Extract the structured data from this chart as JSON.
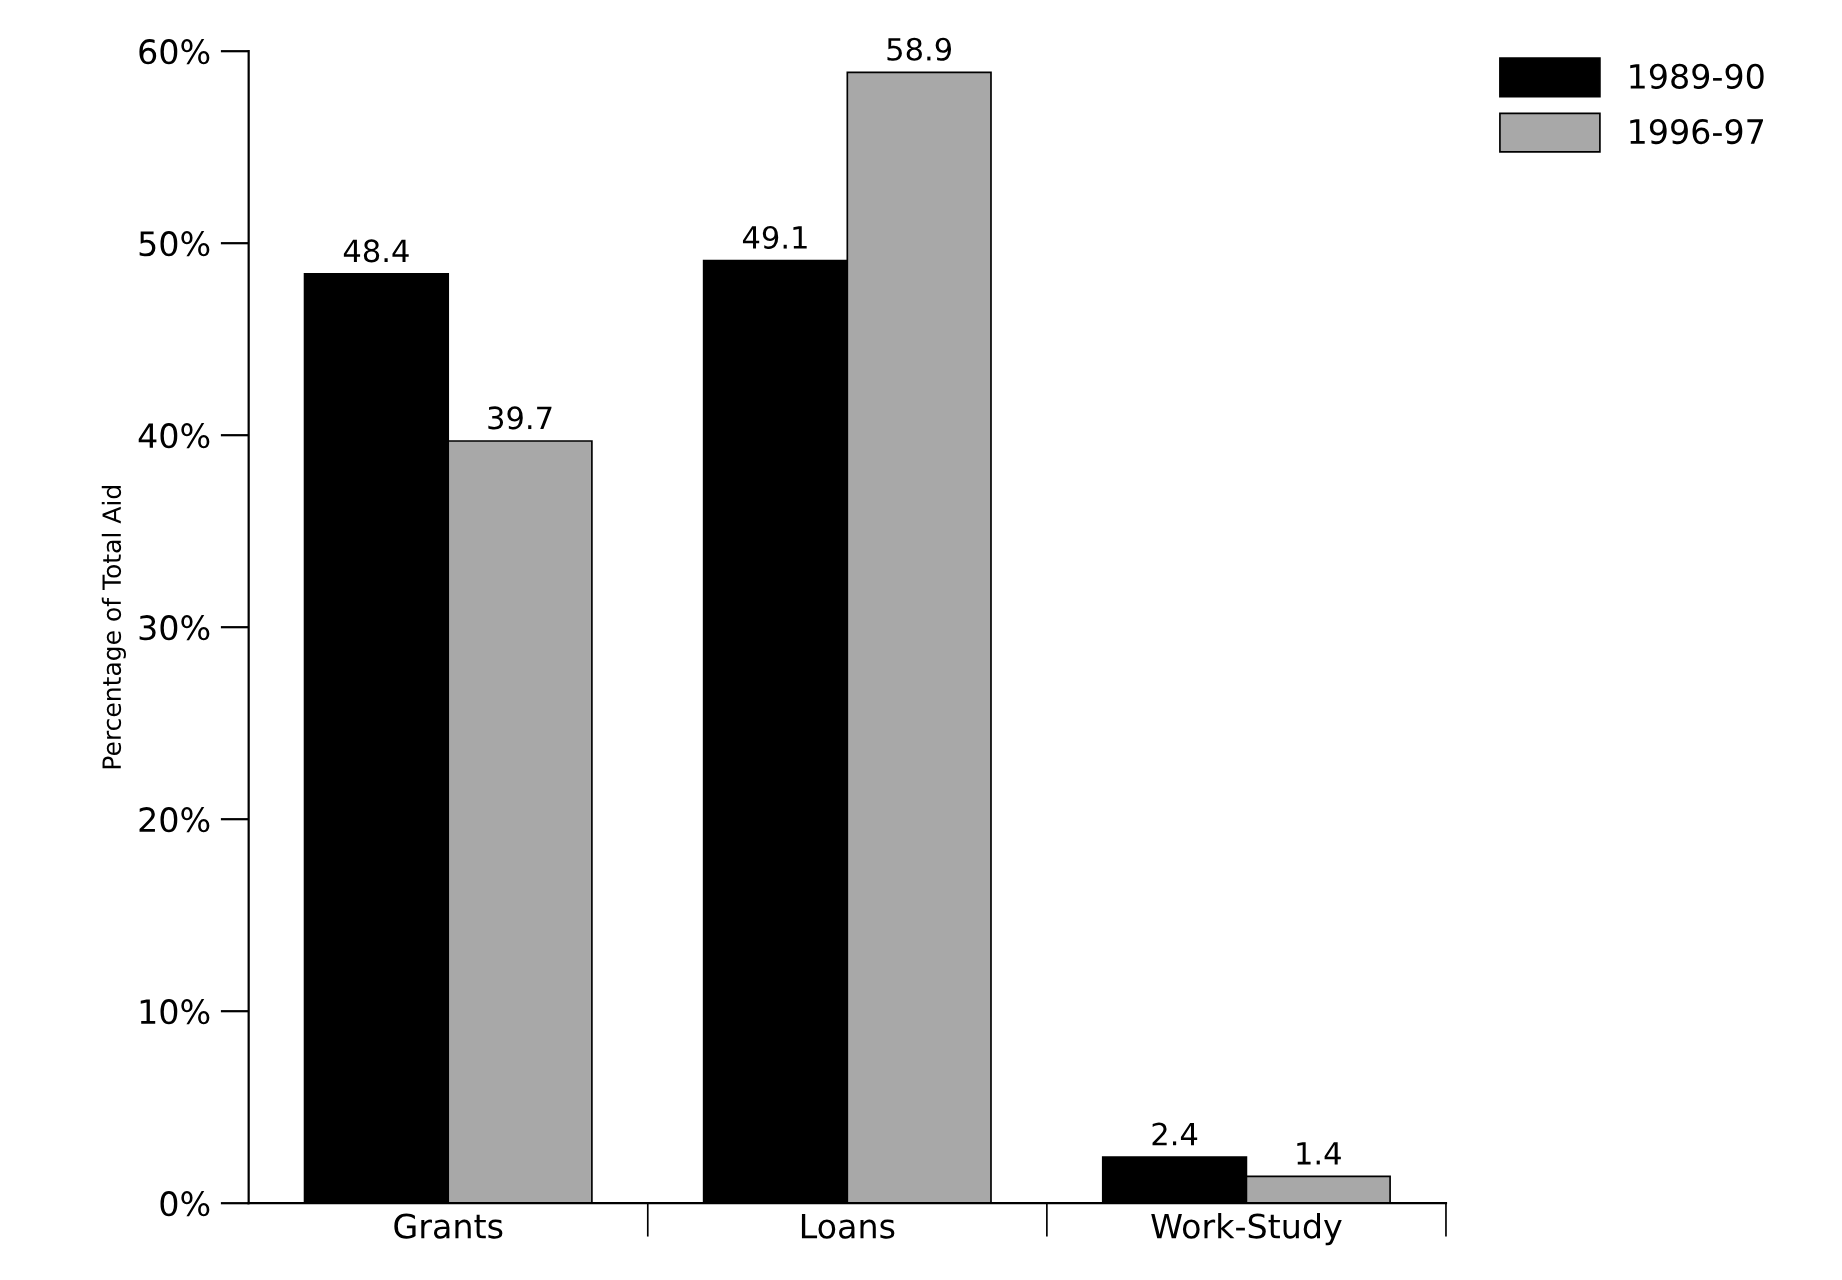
{
  "chart_data": {
    "type": "bar",
    "ylabel": "Percentage of Total Aid",
    "categories": [
      "Grants",
      "Loans",
      "Work-Study"
    ],
    "series": [
      {
        "name": "1989-90",
        "color": "#000000",
        "values": [
          48.4,
          49.1,
          2.4
        ]
      },
      {
        "name": "1996-97",
        "color": "#a8a8a8",
        "values": [
          39.7,
          58.9,
          1.4
        ]
      }
    ],
    "ylim": [
      0,
      60
    ],
    "yticks": [
      {
        "value": 0,
        "label": "0%"
      },
      {
        "value": 10,
        "label": "10%"
      },
      {
        "value": 20,
        "label": "20%"
      },
      {
        "value": 30,
        "label": "30%"
      },
      {
        "value": 40,
        "label": "40%"
      },
      {
        "value": 50,
        "label": "50%"
      },
      {
        "value": 60,
        "label": "60%"
      }
    ],
    "data_labels": true,
    "legend": "top right",
    "grid": false
  }
}
